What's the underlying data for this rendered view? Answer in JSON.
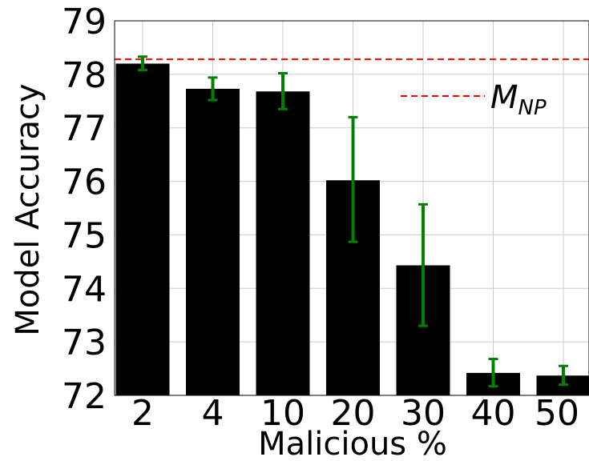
{
  "chart_data": {
    "type": "bar",
    "xlabel": "Malicious %",
    "ylabel": "Model Accuracy",
    "categories": [
      "2",
      "4",
      "10",
      "20",
      "30",
      "40",
      "50"
    ],
    "values": [
      78.2,
      77.73,
      77.68,
      76.02,
      74.43,
      72.42,
      72.37
    ],
    "error_low": [
      78.08,
      77.52,
      77.35,
      74.87,
      73.3,
      72.17,
      72.2
    ],
    "error_high": [
      78.33,
      77.94,
      78.02,
      77.2,
      75.57,
      72.68,
      72.55
    ],
    "ylim": [
      72,
      79
    ],
    "yticks": [
      72,
      73,
      74,
      75,
      76,
      77,
      78,
      79
    ],
    "reference_line": {
      "value": 78.28,
      "color": "#ff0000",
      "style": "dashed"
    },
    "legend": {
      "label_main": "M",
      "label_sub": "NP",
      "placement": "upper-right"
    },
    "bar_color": "#000000",
    "error_color": "#008000",
    "grid": true
  }
}
